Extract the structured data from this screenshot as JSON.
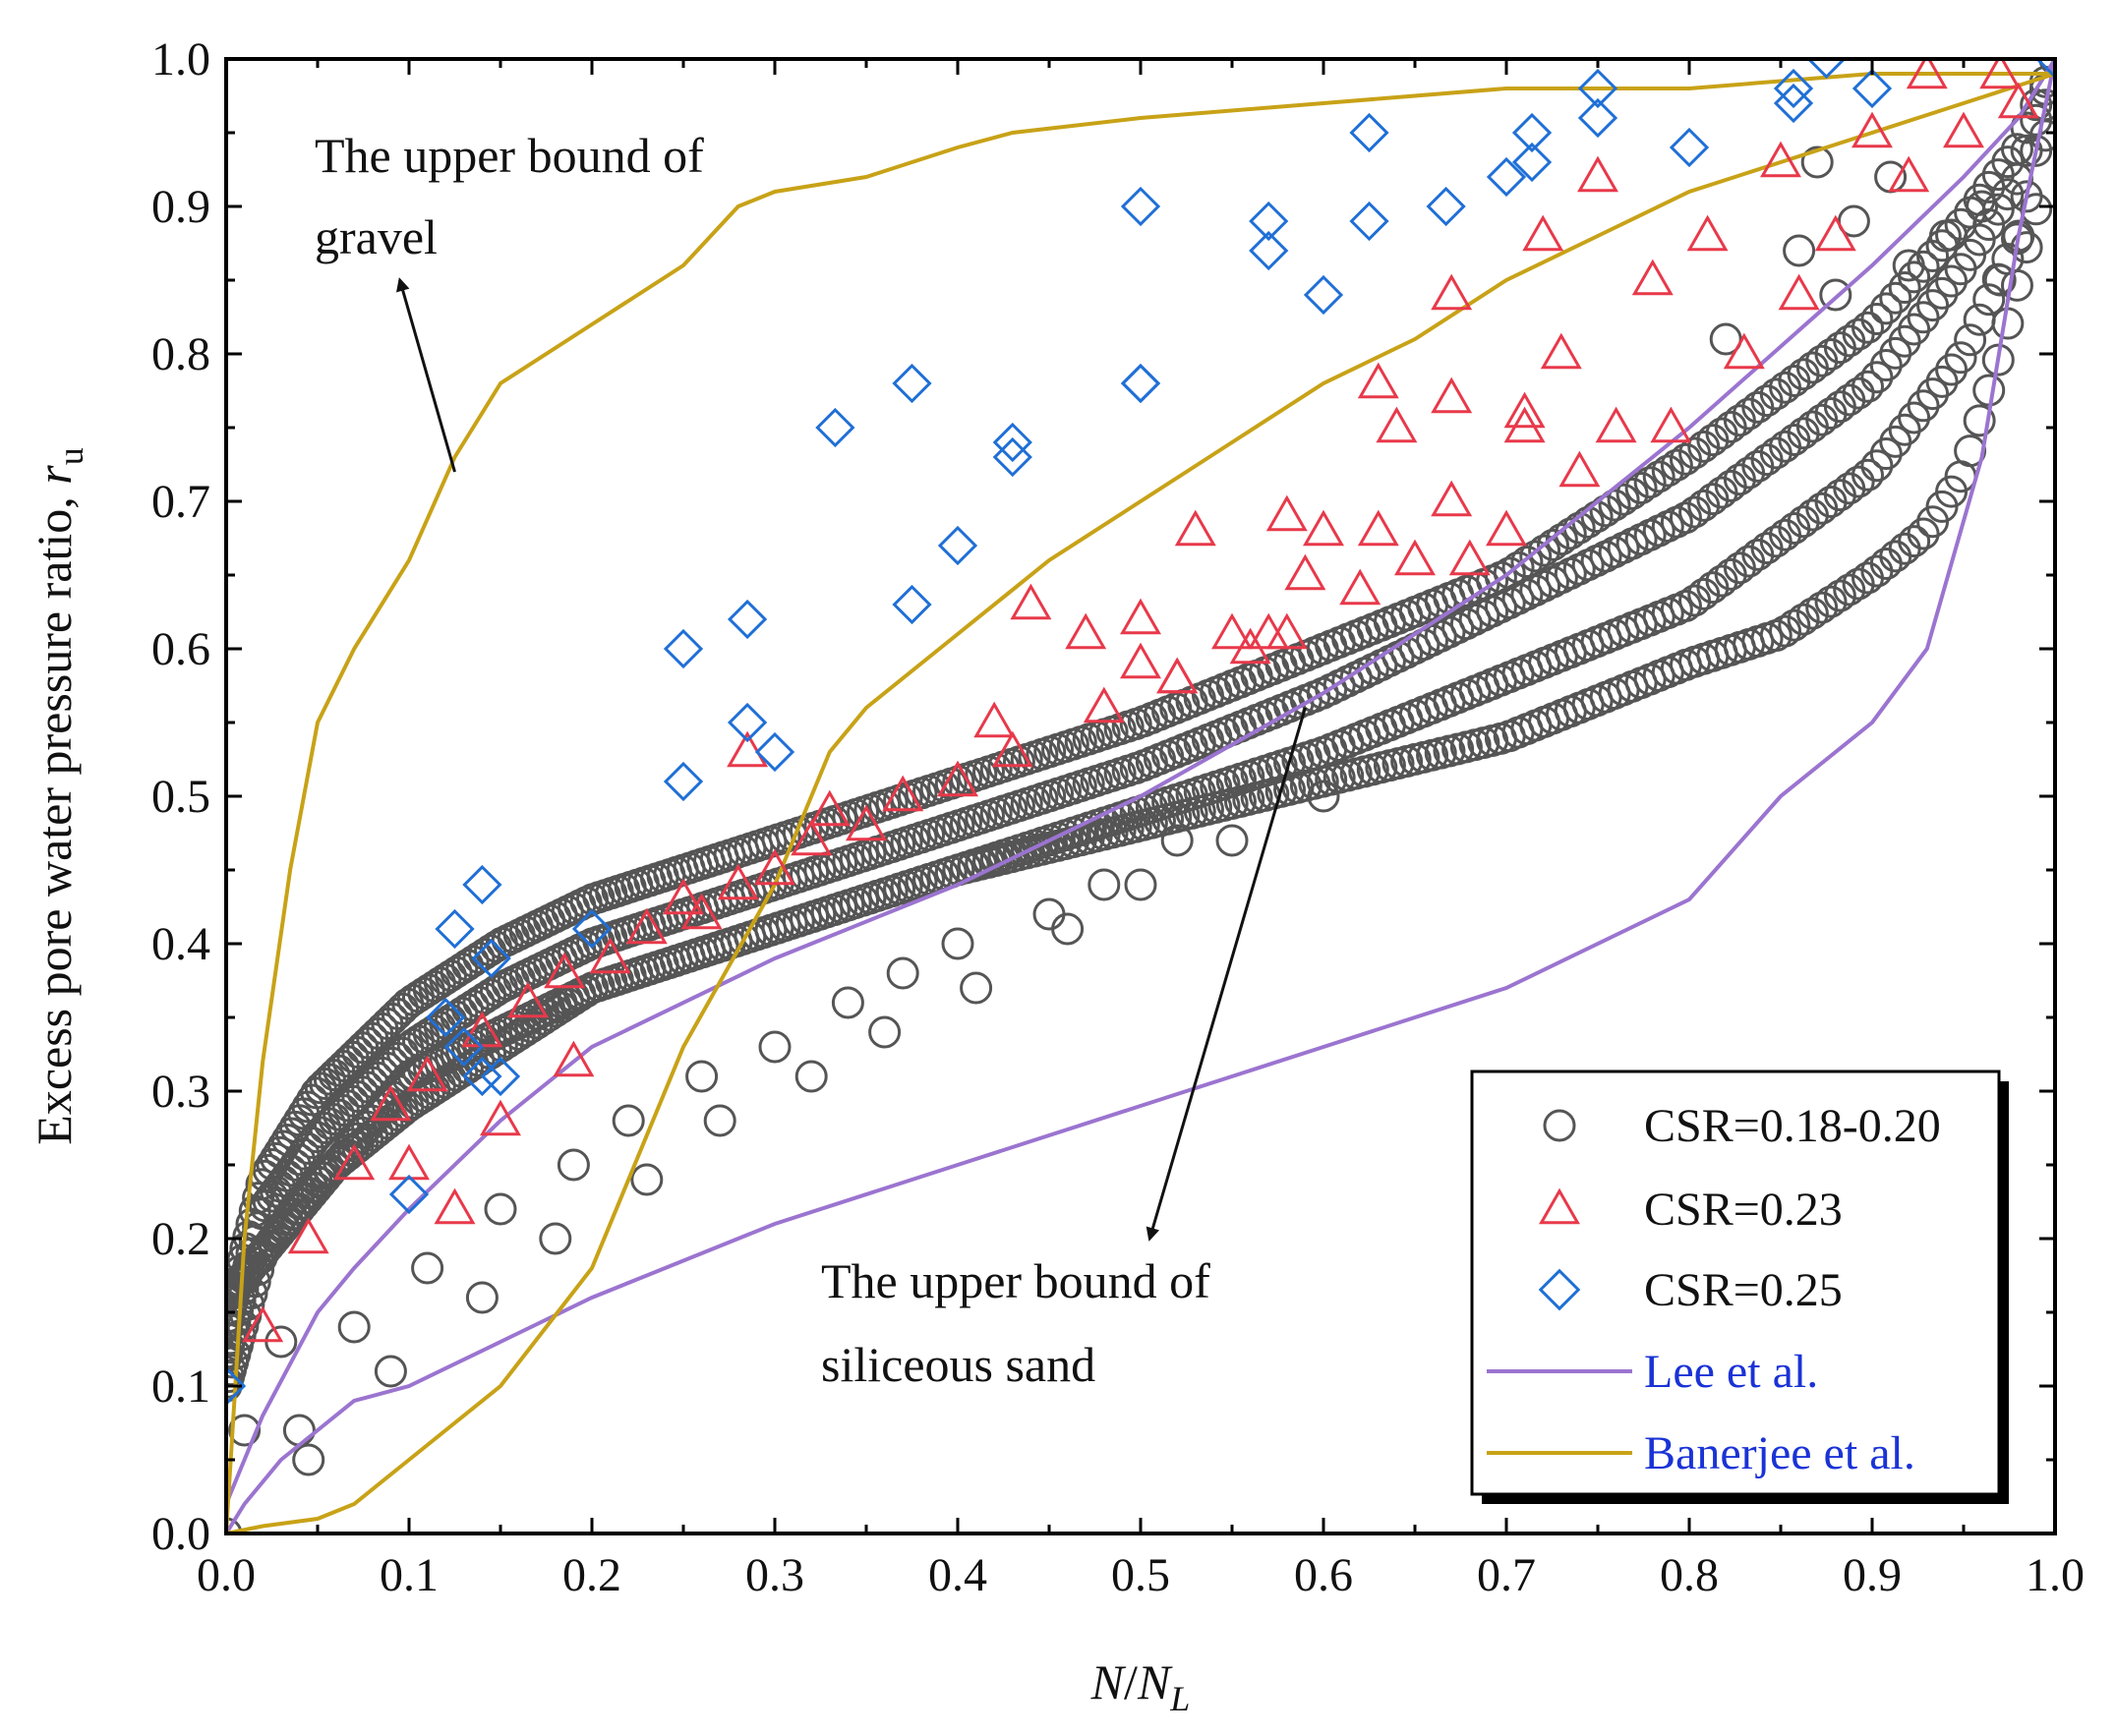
{
  "chart_data": {
    "type": "scatter",
    "title": "",
    "xlabel": {
      "main": "N",
      "slash": "/",
      "sub_main": "N",
      "subscript": "L"
    },
    "ylabel": {
      "text": "Excess pore water pressure ratio, ",
      "symbol": "r",
      "subscript": "u"
    },
    "xlim": [
      0.0,
      1.0
    ],
    "ylim": [
      0.0,
      1.0
    ],
    "x_ticks": [
      "0.0",
      "0.1",
      "0.2",
      "0.3",
      "0.4",
      "0.5",
      "0.6",
      "0.7",
      "0.8",
      "0.9",
      "1.0"
    ],
    "y_ticks": [
      "0.0",
      "0.1",
      "0.2",
      "0.3",
      "0.4",
      "0.5",
      "0.6",
      "0.7",
      "0.8",
      "0.9",
      "1.0"
    ],
    "grid": false,
    "legend_position": "bottom-right",
    "annotations": [
      {
        "lines": [
          "The upper bound of",
          "gravel"
        ],
        "arrow_from": [
          0.125,
          0.72
        ],
        "arrow_to": [
          0.095,
          0.85
        ]
      },
      {
        "lines": [
          "The upper bound of",
          "siliceous sand"
        ],
        "arrow_from": [
          0.59,
          0.56
        ],
        "arrow_to": [
          0.505,
          0.2
        ]
      }
    ],
    "series": [
      {
        "name": "CSR=0.18-0.20",
        "marker": "circle",
        "color": "#555555",
        "curves": [
          {
            "x": [
              0.0,
              0.02,
              0.05,
              0.1,
              0.15,
              0.2,
              0.3,
              0.4,
              0.5,
              0.6,
              0.7,
              0.8,
              0.9,
              0.95,
              0.98,
              1.0
            ],
            "y": [
              0.12,
              0.22,
              0.27,
              0.33,
              0.37,
              0.4,
              0.44,
              0.48,
              0.52,
              0.57,
              0.63,
              0.69,
              0.78,
              0.86,
              0.92,
              1.0
            ]
          },
          {
            "x": [
              0.0,
              0.02,
              0.05,
              0.1,
              0.15,
              0.2,
              0.3,
              0.4,
              0.5,
              0.6,
              0.7,
              0.8,
              0.9,
              0.95,
              0.98,
              1.0
            ],
            "y": [
              0.14,
              0.24,
              0.3,
              0.36,
              0.4,
              0.43,
              0.47,
              0.51,
              0.55,
              0.6,
              0.65,
              0.73,
              0.82,
              0.89,
              0.94,
              1.0
            ]
          },
          {
            "x": [
              0.0,
              0.02,
              0.05,
              0.1,
              0.15,
              0.2,
              0.3,
              0.4,
              0.5,
              0.6,
              0.7,
              0.8,
              0.9,
              0.95,
              0.98,
              1.0
            ],
            "y": [
              0.1,
              0.19,
              0.24,
              0.29,
              0.33,
              0.37,
              0.41,
              0.45,
              0.49,
              0.53,
              0.58,
              0.63,
              0.72,
              0.8,
              0.88,
              1.0
            ]
          },
          {
            "x": [
              0.0,
              0.1,
              0.2,
              0.3,
              0.4,
              0.5,
              0.6,
              0.7,
              0.8,
              0.85,
              0.9,
              0.93,
              0.95,
              0.97,
              0.99,
              1.0
            ],
            "y": [
              0.16,
              0.31,
              0.37,
              0.41,
              0.45,
              0.48,
              0.51,
              0.54,
              0.59,
              0.61,
              0.65,
              0.68,
              0.72,
              0.8,
              0.9,
              1.0
            ]
          }
        ],
        "scatter_x": [
          0.0,
          0.01,
          0.03,
          0.04,
          0.045,
          0.07,
          0.09,
          0.11,
          0.14,
          0.15,
          0.18,
          0.19,
          0.22,
          0.23,
          0.26,
          0.27,
          0.3,
          0.32,
          0.34,
          0.36,
          0.37,
          0.4,
          0.41,
          0.45,
          0.46,
          0.48,
          0.5,
          0.52,
          0.55,
          0.6,
          0.86,
          0.88,
          0.89,
          0.82,
          0.87,
          0.91,
          0.92,
          0.94,
          0.96,
          0.97,
          0.98
        ],
        "scatter_y": [
          0.0,
          0.07,
          0.13,
          0.07,
          0.05,
          0.14,
          0.11,
          0.18,
          0.16,
          0.22,
          0.2,
          0.25,
          0.28,
          0.24,
          0.31,
          0.28,
          0.33,
          0.31,
          0.36,
          0.34,
          0.38,
          0.4,
          0.37,
          0.42,
          0.41,
          0.44,
          0.44,
          0.47,
          0.47,
          0.5,
          0.87,
          0.84,
          0.89,
          0.81,
          0.93,
          0.92,
          0.86,
          0.88,
          0.9,
          0.85,
          0.88
        ]
      },
      {
        "name": "CSR=0.23",
        "marker": "triangle",
        "color": "#e8394a",
        "x": [
          0.02,
          0.045,
          0.07,
          0.09,
          0.1,
          0.11,
          0.125,
          0.14,
          0.15,
          0.165,
          0.185,
          0.19,
          0.21,
          0.23,
          0.25,
          0.26,
          0.28,
          0.285,
          0.3,
          0.32,
          0.33,
          0.35,
          0.37,
          0.4,
          0.42,
          0.43,
          0.44,
          0.47,
          0.48,
          0.5,
          0.5,
          0.52,
          0.53,
          0.55,
          0.56,
          0.58,
          0.59,
          0.6,
          0.62,
          0.63,
          0.64,
          0.65,
          0.67,
          0.67,
          0.68,
          0.7,
          0.71,
          0.73,
          0.74,
          0.75,
          0.76,
          0.78,
          0.79,
          0.81,
          0.83,
          0.85,
          0.86,
          0.88,
          0.9,
          0.92,
          0.93,
          0.95,
          0.97,
          0.98,
          0.52,
          0.58,
          0.67,
          0.71,
          0.72,
          0.57,
          0.63
        ],
        "y": [
          0.14,
          0.2,
          0.25,
          0.29,
          0.25,
          0.31,
          0.22,
          0.34,
          0.28,
          0.36,
          0.38,
          0.32,
          0.39,
          0.41,
          0.43,
          0.42,
          0.44,
          0.53,
          0.45,
          0.47,
          0.49,
          0.48,
          0.5,
          0.51,
          0.55,
          0.53,
          0.63,
          0.61,
          0.56,
          0.59,
          0.62,
          0.58,
          0.68,
          0.61,
          0.6,
          0.69,
          0.65,
          0.68,
          0.64,
          0.68,
          0.75,
          0.66,
          0.7,
          0.84,
          0.66,
          0.68,
          0.76,
          0.8,
          0.72,
          0.92,
          0.75,
          0.85,
          0.75,
          0.88,
          0.8,
          0.93,
          0.84,
          0.88,
          0.95,
          0.92,
          0.99,
          0.95,
          0.99,
          0.97,
          0.58,
          0.61,
          0.77,
          0.75,
          0.88,
          0.61,
          0.78
        ]
      },
      {
        "name": "CSR=0.25",
        "marker": "diamond",
        "color": "#1f6fd6",
        "x": [
          0.0,
          0.1,
          0.12,
          0.125,
          0.14,
          0.145,
          0.15,
          0.2,
          0.25,
          0.25,
          0.285,
          0.285,
          0.3,
          0.333,
          0.375,
          0.375,
          0.4,
          0.43,
          0.43,
          0.5,
          0.5,
          0.5,
          0.57,
          0.57,
          0.6,
          0.625,
          0.625,
          0.667,
          0.7,
          0.714,
          0.714,
          0.75,
          0.75,
          0.8,
          0.857,
          0.857,
          0.875,
          0.9,
          1.0,
          0.13,
          0.14
        ],
        "y": [
          0.1,
          0.23,
          0.35,
          0.41,
          0.44,
          0.39,
          0.31,
          0.41,
          0.51,
          0.6,
          0.55,
          0.62,
          0.53,
          0.75,
          0.63,
          0.78,
          0.67,
          0.73,
          0.74,
          0.78,
          0.78,
          0.9,
          0.87,
          0.89,
          0.84,
          0.89,
          0.95,
          0.9,
          0.92,
          0.93,
          0.95,
          0.96,
          0.98,
          0.94,
          0.97,
          0.98,
          1.0,
          0.98,
          1.0,
          0.33,
          0.31
        ]
      },
      {
        "name": "Lee et al.",
        "type": "line",
        "color": "#9b74d0",
        "legend_text_color": "#1a33d6",
        "curves": [
          {
            "x": [
              0.0,
              0.02,
              0.05,
              0.07,
              0.1,
              0.15,
              0.2,
              0.3,
              0.4,
              0.5,
              0.6,
              0.7,
              0.8,
              0.9,
              0.95,
              0.98,
              1.0
            ],
            "y": [
              0.02,
              0.08,
              0.15,
              0.18,
              0.22,
              0.28,
              0.33,
              0.39,
              0.44,
              0.5,
              0.57,
              0.65,
              0.75,
              0.86,
              0.92,
              0.96,
              1.0
            ]
          },
          {
            "x": [
              0.0,
              0.01,
              0.03,
              0.05,
              0.07,
              0.1,
              0.15,
              0.2,
              0.25,
              0.3,
              0.4,
              0.5,
              0.6,
              0.7,
              0.8,
              0.85,
              0.9,
              0.93,
              0.96,
              0.98,
              1.0
            ],
            "y": [
              0.0,
              0.02,
              0.05,
              0.07,
              0.09,
              0.1,
              0.13,
              0.16,
              0.185,
              0.21,
              0.25,
              0.29,
              0.33,
              0.37,
              0.43,
              0.5,
              0.55,
              0.6,
              0.73,
              0.88,
              1.0
            ]
          }
        ]
      },
      {
        "name": "Banerjee et al.",
        "type": "line",
        "color": "#c8a217",
        "legend_text_color": "#1a33d6",
        "curves": [
          {
            "x": [
              0.0,
              0.005,
              0.01,
              0.02,
              0.035,
              0.05,
              0.07,
              0.1,
              0.125,
              0.15,
              0.2,
              0.25,
              0.28,
              0.3,
              0.35,
              0.4,
              0.43,
              0.5,
              0.6,
              0.7,
              0.8,
              0.9,
              1.0
            ],
            "y": [
              0.0,
              0.1,
              0.2,
              0.32,
              0.45,
              0.55,
              0.6,
              0.66,
              0.73,
              0.78,
              0.82,
              0.86,
              0.9,
              0.91,
              0.92,
              0.94,
              0.95,
              0.96,
              0.97,
              0.98,
              0.98,
              0.99,
              0.99
            ]
          },
          {
            "x": [
              0.0,
              0.02,
              0.05,
              0.07,
              0.1,
              0.15,
              0.2,
              0.22,
              0.25,
              0.3,
              0.33,
              0.35,
              0.4,
              0.45,
              0.5,
              0.55,
              0.6,
              0.65,
              0.7,
              0.75,
              0.8,
              0.85,
              0.9,
              0.95,
              1.0
            ],
            "y": [
              0.0,
              0.005,
              0.01,
              0.02,
              0.05,
              0.1,
              0.18,
              0.24,
              0.33,
              0.44,
              0.53,
              0.56,
              0.61,
              0.66,
              0.7,
              0.74,
              0.78,
              0.81,
              0.85,
              0.88,
              0.91,
              0.93,
              0.95,
              0.97,
              0.99
            ]
          }
        ]
      }
    ]
  }
}
